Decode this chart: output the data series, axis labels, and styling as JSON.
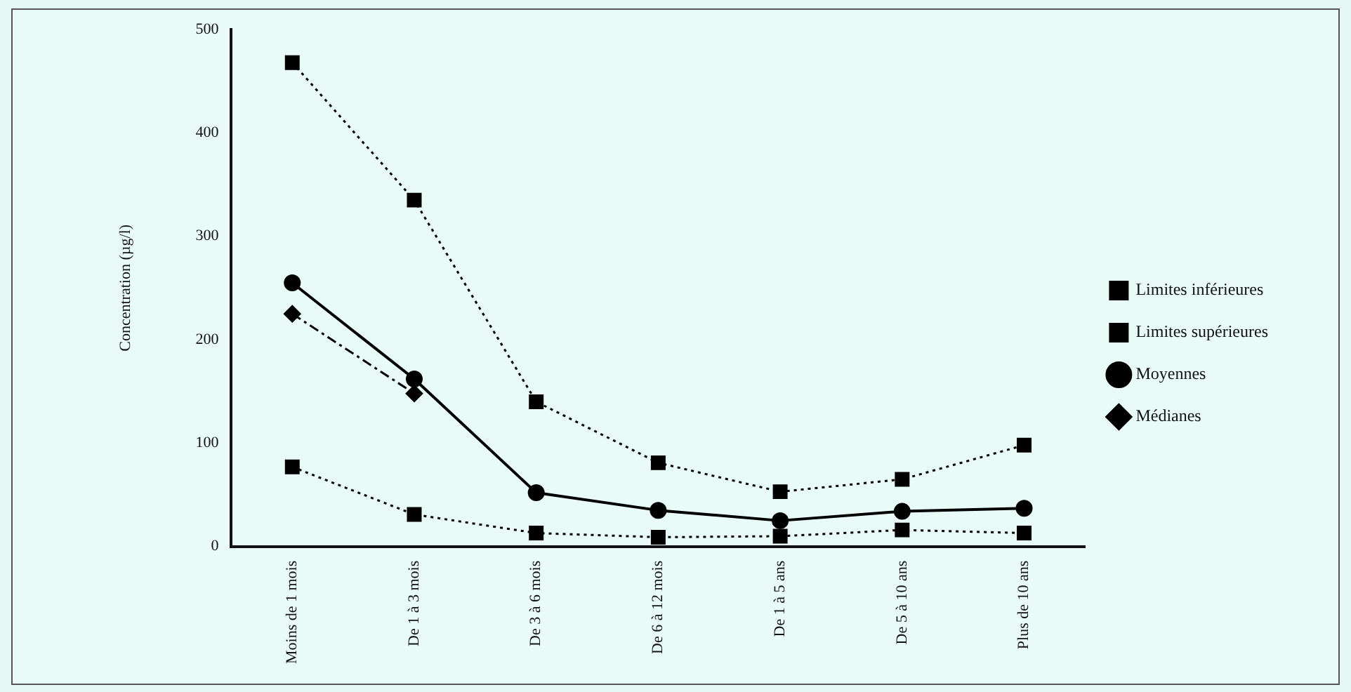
{
  "chart_data": {
    "type": "line",
    "ylabel": "Concentration (µg/l)",
    "categories": [
      "Moins de 1 mois",
      "De 1 à 3 mois",
      "De 3 à 6 mois",
      "De 6 à 12 mois",
      "De 1 à 5 ans",
      "De 5 à 10 ans",
      "Plus de 10 ans"
    ],
    "series": [
      {
        "name": "Limites inférieures",
        "color": "#000000",
        "marker": "square",
        "line_style": "dotted",
        "values": [
          77,
          31,
          13,
          9,
          10,
          16,
          13
        ]
      },
      {
        "name": "Limites supérieures",
        "color": "#000000",
        "marker": "square",
        "line_style": "dotted",
        "values": [
          468,
          335,
          140,
          81,
          53,
          65,
          98
        ]
      },
      {
        "name": "Moyennes",
        "color": "#000000",
        "marker": "circle",
        "line_style": "solid",
        "values": [
          255,
          162,
          52,
          35,
          25,
          34,
          37
        ]
      },
      {
        "name": "Médianes",
        "color": "#000000",
        "marker": "diamond",
        "line_style": "dashed",
        "values": [
          225,
          148,
          null,
          null,
          null,
          null,
          null
        ]
      }
    ],
    "ylim": [
      0,
      500
    ],
    "yticks": [
      0,
      100,
      200,
      300,
      400,
      500
    ],
    "grid": false,
    "legend": "right"
  }
}
